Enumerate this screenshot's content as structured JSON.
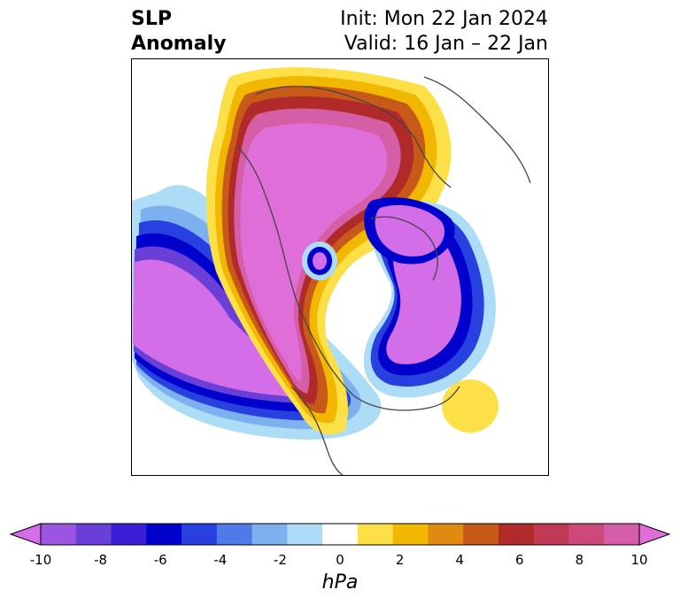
{
  "title": {
    "left_line1": "SLP",
    "left_line2": "Anomaly",
    "right_line1": "Init: Mon 22 Jan 2024",
    "right_line2": "Valid: 16 Jan – 22 Jan"
  },
  "colorbar": {
    "unit": "hPa",
    "tick_labels": [
      "-10",
      "-8",
      "-6",
      "-4",
      "-2",
      "0",
      "2",
      "4",
      "6",
      "8",
      "10"
    ],
    "colors": [
      "#d46ee8",
      "#9b55e0",
      "#6a3fd8",
      "#3a1fd6",
      "#0000cd",
      "#2840e0",
      "#4f7ae8",
      "#7db0ee",
      "#addcf7",
      "#ffffff",
      "#fde047",
      "#f2b700",
      "#e08a12",
      "#c85a19",
      "#b02a2a",
      "#c03a55",
      "#cc4a7a",
      "#d45fa7",
      "#e06ed8"
    ]
  },
  "map": {
    "projection": "north-polar-stereographic",
    "shading": "sea-level-pressure-anomaly"
  }
}
